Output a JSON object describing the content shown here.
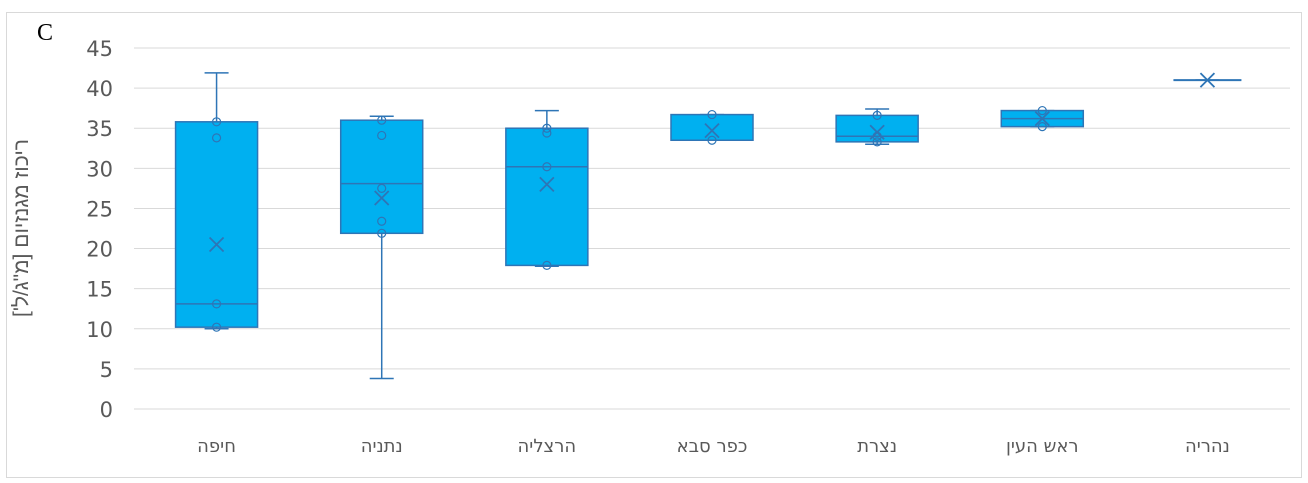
{
  "panel_label": "C",
  "chart_data": {
    "type": "boxplot",
    "title": "",
    "xlabel": "",
    "ylabel": "ריכוז מגנזיום [מ\"ג/ל']",
    "ylim": [
      0,
      45
    ],
    "yticks": [
      0,
      5,
      10,
      15,
      20,
      25,
      30,
      35,
      40,
      45
    ],
    "grid": true,
    "categories": [
      "חיפה",
      "נתניה",
      "הרצליה",
      "כפר סבא",
      "נצרת",
      "ראש העין",
      "נהריה"
    ],
    "boxes": [
      {
        "category": "חיפה",
        "min": 10.0,
        "q1": 10.2,
        "median": 13.1,
        "q3": 35.8,
        "max": 41.9,
        "mean": 20.5,
        "points": [
          10.2,
          13.1,
          33.8,
          35.8
        ]
      },
      {
        "category": "נתניה",
        "min": 3.8,
        "q1": 21.9,
        "median": 28.1,
        "q3": 36.0,
        "max": 36.5,
        "mean": 26.3,
        "points": [
          21.9,
          23.4,
          27.5,
          34.1,
          36.0
        ]
      },
      {
        "category": "הרצליה",
        "min": 17.8,
        "q1": 17.9,
        "median": 30.2,
        "q3": 35.0,
        "max": 37.2,
        "mean": 28.0,
        "points": [
          17.9,
          30.2,
          34.4,
          35.0
        ]
      },
      {
        "category": "כפר סבא",
        "min": 33.5,
        "q1": 33.5,
        "median": 33.5,
        "q3": 36.7,
        "max": 36.7,
        "mean": 34.7,
        "points": [
          33.5,
          36.7
        ]
      },
      {
        "category": "נצרת",
        "min": 33.0,
        "q1": 33.3,
        "median": 34.0,
        "q3": 36.6,
        "max": 37.4,
        "mean": 34.5,
        "points": [
          33.3,
          34.0,
          36.6
        ]
      },
      {
        "category": "ראש העין",
        "min": 35.2,
        "q1": 35.2,
        "median": 36.2,
        "q3": 37.2,
        "max": 37.2,
        "mean": 36.2,
        "points": [
          35.2,
          37.2
        ]
      },
      {
        "category": "נהריה",
        "min": 41.0,
        "q1": 41.0,
        "median": 41.0,
        "q3": 41.0,
        "max": 41.0,
        "mean": 41.0,
        "points": []
      }
    ],
    "colors": {
      "box_fill": "#00b0f0",
      "line": "#2e75b6",
      "grid": "#d9d9d9",
      "axis_text": "#595959"
    }
  }
}
